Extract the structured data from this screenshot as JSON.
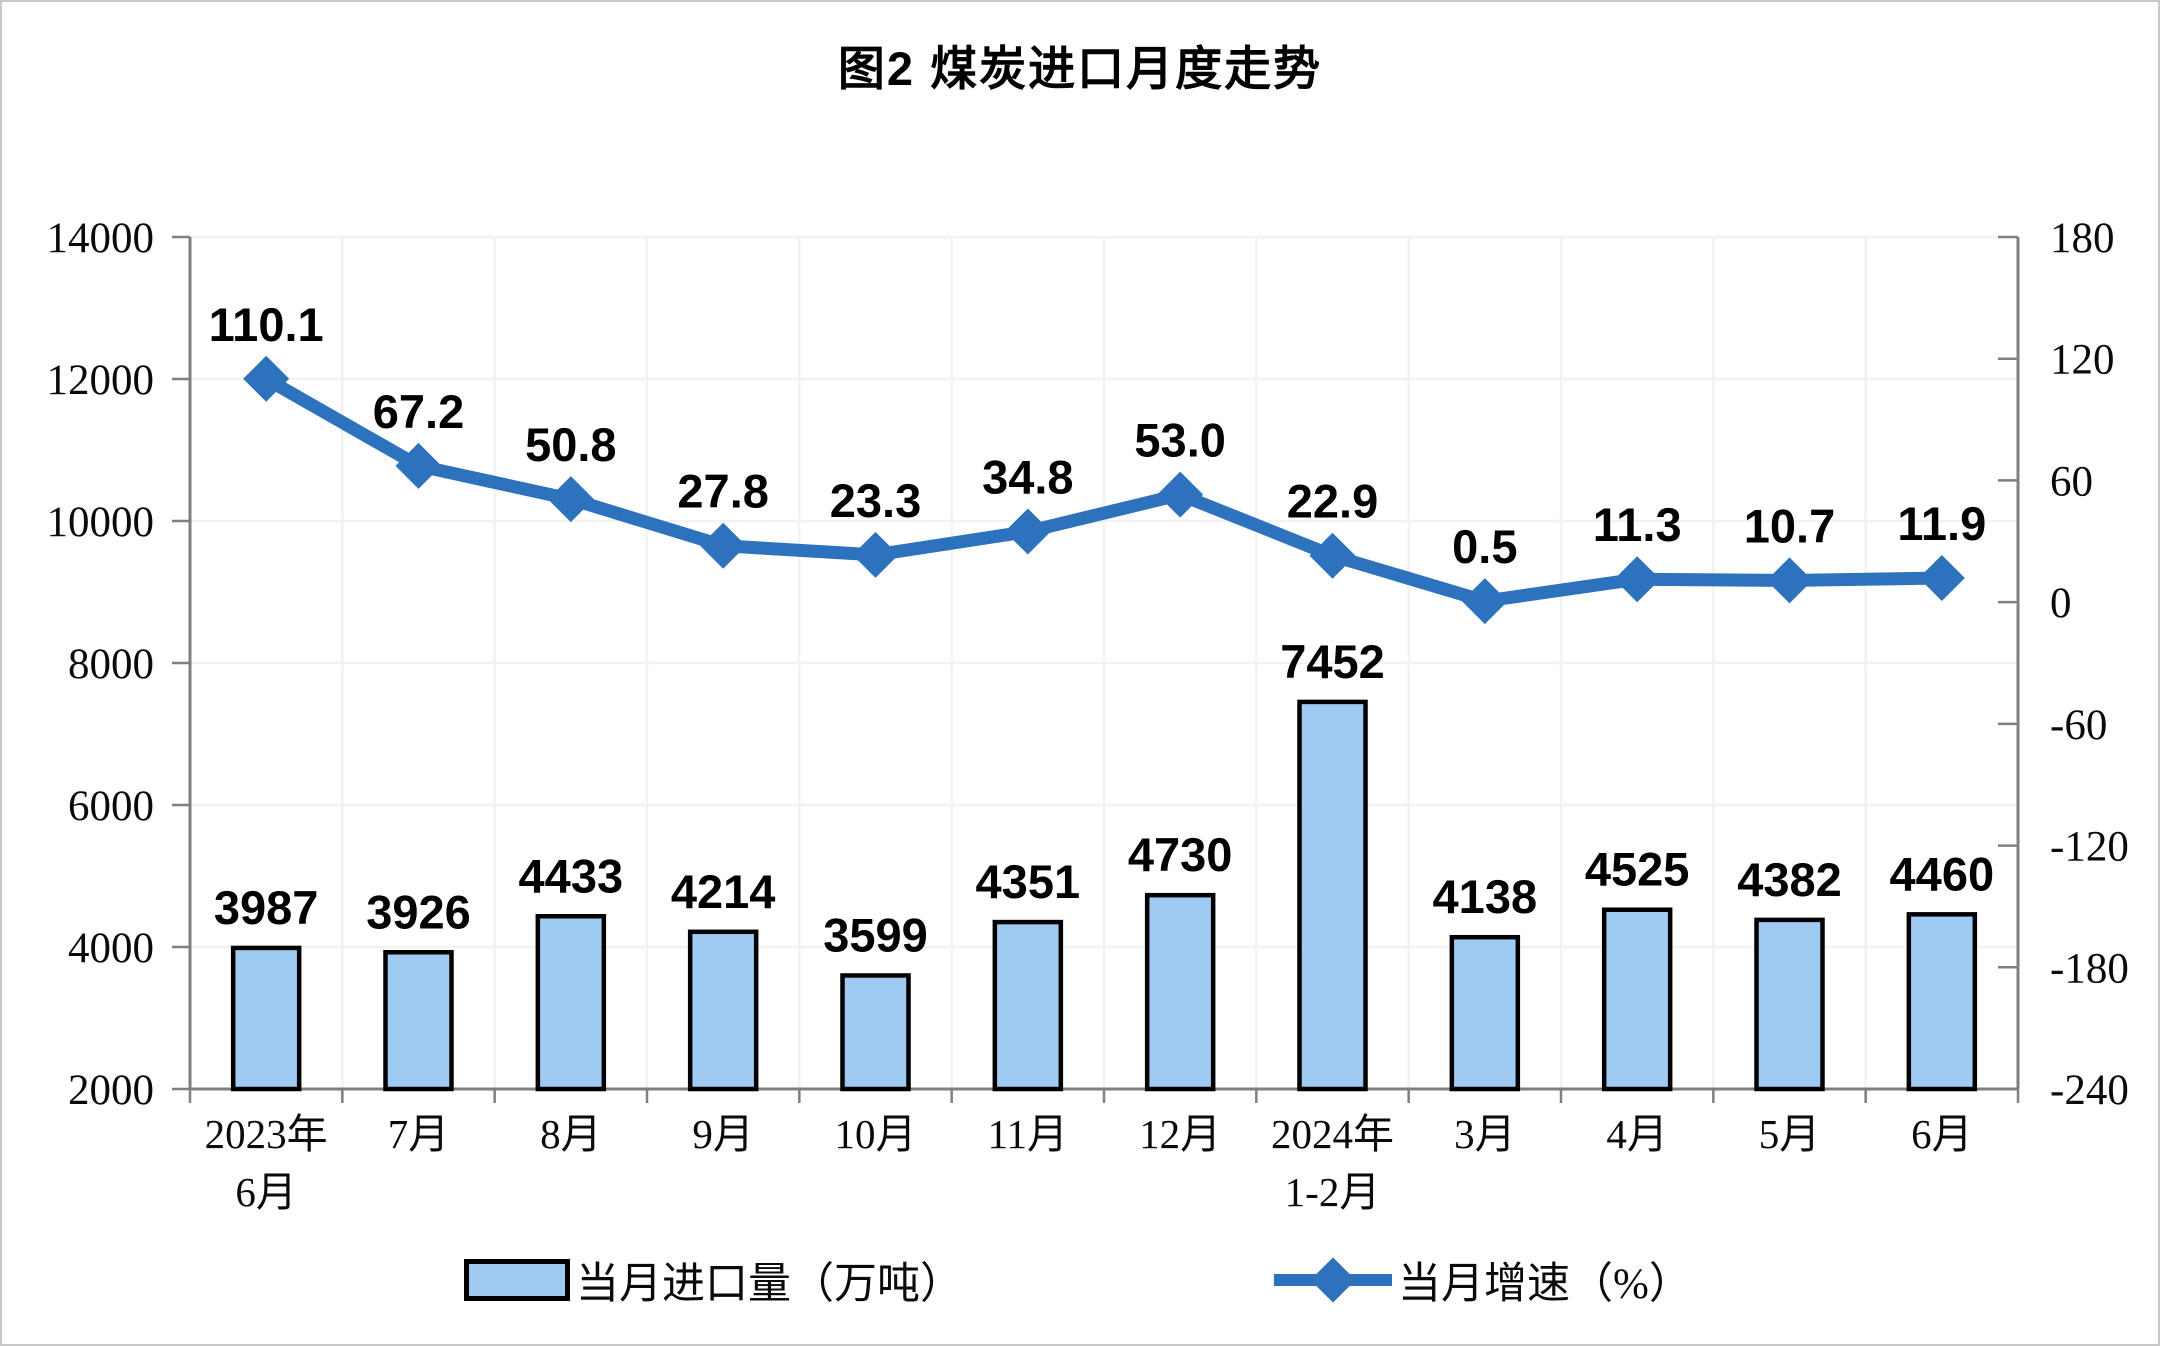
{
  "title": "图2 煤炭进口月度走势",
  "legend": {
    "bars_label": "当月进口量（万吨）",
    "line_label": "当月增速（%）"
  },
  "colors": {
    "bar_fill": "#9FCBF2",
    "bar_border": "#000000",
    "line": "#2D72BC",
    "axis": "#7f7f7f",
    "grid": "#f2f2f2",
    "label": "#000000"
  },
  "chart_data": {
    "type": "bar",
    "subtype": "dual-axis bar+line",
    "title": "图2 煤炭进口月度走势",
    "categories": [
      {
        "label": "2023年",
        "label2": "6月"
      },
      {
        "label": "7月"
      },
      {
        "label": "8月"
      },
      {
        "label": "9月"
      },
      {
        "label": "10月"
      },
      {
        "label": "11月"
      },
      {
        "label": "12月"
      },
      {
        "label": "2024年",
        "label2": "1-2月"
      },
      {
        "label": "3月"
      },
      {
        "label": "4月"
      },
      {
        "label": "5月"
      },
      {
        "label": "6月"
      }
    ],
    "series": [
      {
        "name": "当月进口量（万吨）",
        "type": "bar",
        "axis": "left",
        "values": [
          3987,
          3926,
          4433,
          4214,
          3599,
          4351,
          4730,
          7452,
          4138,
          4525,
          4382,
          4460
        ]
      },
      {
        "name": "当月增速（%）",
        "type": "line",
        "axis": "right",
        "values": [
          110.1,
          67.2,
          50.8,
          27.8,
          23.3,
          34.8,
          53.0,
          22.9,
          0.5,
          11.3,
          10.7,
          11.9
        ]
      }
    ],
    "left_axis": {
      "min": 2000,
      "max": 14000,
      "step": 2000
    },
    "right_axis": {
      "min": -240,
      "max": 180,
      "step": 60
    },
    "grid": "faint horizontal at left ticks, faint vertical at category boundaries",
    "legend_position": "bottom"
  }
}
